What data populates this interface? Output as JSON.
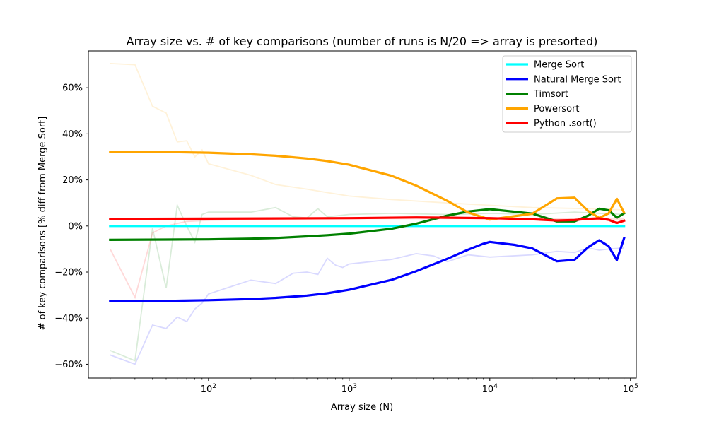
{
  "chart_data": {
    "type": "line",
    "title": "Array size vs. # of key comparisons (number of runs is N/20 => array is presorted)",
    "xlabel": "Array size (N)",
    "ylabel": "# of key comparisons [% diff from Merge Sort]",
    "xscale": "log",
    "xlim": [
      14,
      110000
    ],
    "ylim": [
      -66,
      76
    ],
    "x_ticks": [
      {
        "value": 100,
        "base": "10",
        "exp": "2"
      },
      {
        "value": 1000,
        "base": "10",
        "exp": "3"
      },
      {
        "value": 10000,
        "base": "10",
        "exp": "4"
      },
      {
        "value": 100000,
        "base": "10",
        "exp": "5"
      }
    ],
    "y_ticks": [
      {
        "value": -60,
        "label": "−60%"
      },
      {
        "value": -40,
        "label": "−40%"
      },
      {
        "value": -20,
        "label": "−20%"
      },
      {
        "value": 0,
        "label": "0%"
      },
      {
        "value": 20,
        "label": "20%"
      },
      {
        "value": 40,
        "label": "40%"
      },
      {
        "value": 60,
        "label": "60%"
      }
    ],
    "legend_position": "top-right",
    "series": [
      {
        "name": "Merge Sort",
        "color": "#00ffff",
        "x": [
          20,
          90000
        ],
        "y": [
          0,
          0
        ]
      },
      {
        "name": "Natural Merge Sort",
        "color": "#0000ff",
        "x": [
          20,
          50,
          100,
          200,
          300,
          500,
          700,
          1000,
          2000,
          3000,
          5000,
          7000,
          8000,
          9000,
          10000,
          15000,
          20000,
          30000,
          40000,
          50000,
          60000,
          70000,
          80000,
          90000
        ],
        "y": [
          -32.6,
          -32.5,
          -32.2,
          -31.7,
          -31.2,
          -30.2,
          -29.2,
          -27.7,
          -23.4,
          -19.6,
          -14.2,
          -10.3,
          -8.9,
          -7.7,
          -6.9,
          -8.2,
          -9.7,
          -15.3,
          -14.7,
          -9.2,
          -6.2,
          -8.8,
          -14.8,
          -5.3
        ]
      },
      {
        "name": "Timsort",
        "color": "#008000",
        "x": [
          20,
          50,
          100,
          200,
          300,
          500,
          700,
          1000,
          2000,
          3000,
          5000,
          7000,
          10000,
          20000,
          30000,
          40000,
          50000,
          60000,
          70000,
          80000,
          90000
        ],
        "y": [
          -6.0,
          -5.9,
          -5.8,
          -5.5,
          -5.2,
          -4.5,
          -4.0,
          -3.3,
          -1.2,
          1.0,
          4.5,
          6.3,
          7.3,
          5.4,
          2.0,
          2.0,
          4.5,
          7.5,
          6.8,
          3.6,
          5.5
        ]
      },
      {
        "name": "Powersort",
        "color": "#ffa500",
        "x": [
          20,
          50,
          100,
          200,
          300,
          500,
          700,
          1000,
          2000,
          3000,
          5000,
          7000,
          10000,
          20000,
          30000,
          40000,
          50000,
          60000,
          70000,
          80000,
          90000
        ],
        "y": [
          32.2,
          32.1,
          31.8,
          31.1,
          30.5,
          29.3,
          28.2,
          26.6,
          21.8,
          17.5,
          10.9,
          5.9,
          2.8,
          5.3,
          12.0,
          12.3,
          6.5,
          3.5,
          5.5,
          11.8,
          5.8
        ]
      },
      {
        "name": "Python .sort()",
        "color": "#ff0000",
        "x": [
          20,
          100,
          1000,
          3000,
          10000,
          20000,
          30000,
          40000,
          50000,
          60000,
          70000,
          80000,
          90000
        ],
        "y": [
          3.1,
          3.2,
          3.4,
          3.7,
          3.4,
          2.9,
          2.4,
          2.6,
          3.1,
          3.3,
          2.7,
          1.3,
          2.3
        ]
      }
    ],
    "background_series": [
      {
        "color": "#ffa500",
        "x": [
          20,
          30,
          40,
          50,
          60,
          70,
          80,
          90,
          100,
          200,
          300,
          500,
          700,
          1000,
          2000,
          5000,
          10000,
          20000,
          50000,
          90000
        ],
        "y": [
          70.5,
          70.0,
          52.0,
          49.0,
          36.5,
          37.0,
          30.0,
          33.0,
          27.0,
          22.0,
          18.0,
          16.0,
          14.5,
          13.0,
          11.5,
          10.0,
          9.0,
          8.0,
          7.5,
          7.0
        ]
      },
      {
        "color": "#0000ff",
        "x": [
          20,
          30,
          40,
          50,
          60,
          70,
          80,
          90,
          100,
          200,
          300,
          400,
          500,
          600,
          700,
          800,
          900,
          1000,
          2000,
          3000,
          4000,
          5000,
          7000,
          10000,
          20000,
          30000,
          40000,
          50000,
          60000,
          70000,
          90000
        ],
        "y": [
          -56,
          -60,
          -43,
          -44.5,
          -39.5,
          -41.5,
          -36,
          -33.5,
          -29.5,
          -23.5,
          -25,
          -20.5,
          -20,
          -21,
          -14,
          -17,
          -18,
          -16.5,
          -14.5,
          -12,
          -13,
          -15.5,
          -12.5,
          -13.5,
          -12.5,
          -11,
          -11.5,
          -9.5,
          -10.5,
          -10,
          -9.5
        ]
      },
      {
        "color": "#008000",
        "x": [
          20,
          30,
          40,
          50,
          60,
          70,
          80,
          90,
          100,
          200,
          300,
          400,
          500,
          600,
          700,
          1000,
          2000,
          5000,
          10000,
          20000,
          40000,
          90000
        ],
        "y": [
          -54,
          -58.5,
          -1,
          -27,
          9,
          0,
          -7,
          5,
          6,
          6,
          8,
          4,
          3.5,
          7.5,
          4,
          5,
          5.5,
          5,
          5.5,
          5,
          6,
          5
        ]
      },
      {
        "color": "#ff0000",
        "x": [
          20,
          30,
          40,
          50,
          70,
          100,
          300,
          1000,
          10000,
          90000
        ],
        "y": [
          -10,
          -31,
          -3,
          0,
          2,
          2.5,
          3,
          3.2,
          3.2,
          3
        ]
      }
    ]
  }
}
